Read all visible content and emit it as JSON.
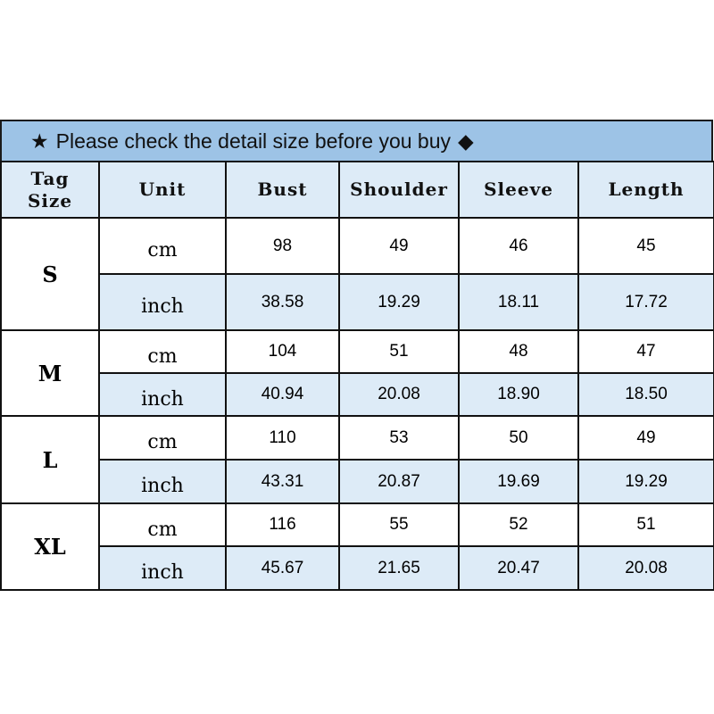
{
  "title": {
    "star_icon": "★",
    "text": "Please check the detail size before you buy",
    "diamond_icon": "◆"
  },
  "headers": {
    "tag": "Tag",
    "size": "Size",
    "unit": "Unit",
    "bust": "Bust",
    "shoulder": "Shoulder",
    "sleeve": "Sleeve",
    "length": "Length"
  },
  "colors": {
    "title_bg": "#9dc3e6",
    "header_bg": "#ddebf7",
    "inch_row_bg": "#ddebf7"
  },
  "sizes": [
    {
      "tag": "S",
      "cm": {
        "unit": "cm",
        "values": [
          "98",
          "49",
          "46",
          "45"
        ]
      },
      "inch": {
        "unit": "inch",
        "values": [
          "38.58",
          "19.29",
          "18.11",
          "17.72"
        ]
      }
    },
    {
      "tag": "M",
      "cm": {
        "unit": "cm",
        "values": [
          "104",
          "51",
          "48",
          "47"
        ]
      },
      "inch": {
        "unit": "inch",
        "values": [
          "40.94",
          "20.08",
          "18.90",
          "18.50"
        ]
      }
    },
    {
      "tag": "L",
      "cm": {
        "unit": "cm",
        "values": [
          "110",
          "53",
          "50",
          "49"
        ]
      },
      "inch": {
        "unit": "inch",
        "values": [
          "43.31",
          "20.87",
          "19.69",
          "19.29"
        ]
      }
    },
    {
      "tag": "XL",
      "cm": {
        "unit": "cm",
        "values": [
          "116",
          "55",
          "52",
          "51"
        ]
      },
      "inch": {
        "unit": "inch",
        "values": [
          "45.67",
          "21.65",
          "20.47",
          "20.08"
        ]
      }
    }
  ]
}
